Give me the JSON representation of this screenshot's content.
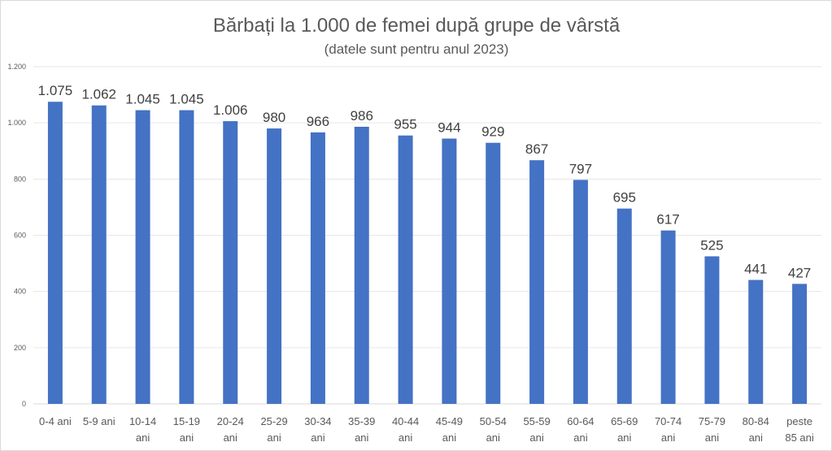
{
  "chart_data": {
    "type": "bar",
    "title": "Bărbați la 1.000 de femei după grupe de vârstă",
    "subtitle": "(datele sunt pentru anul 2023)",
    "xlabel": "",
    "ylabel": "",
    "ylim": [
      0,
      1200
    ],
    "yticks": [
      0,
      200,
      400,
      600,
      800,
      1000,
      1200
    ],
    "ytick_labels": [
      "0",
      "200",
      "400",
      "600",
      "800",
      "1.000",
      "1.200"
    ],
    "grid": true,
    "bar_color": "#4472C4",
    "categories": [
      [
        "0-4 ani"
      ],
      [
        "5-9 ani"
      ],
      [
        "10-14",
        "ani"
      ],
      [
        "15-19",
        "ani"
      ],
      [
        "20-24",
        "ani"
      ],
      [
        "25-29",
        "ani"
      ],
      [
        "30-34",
        "ani"
      ],
      [
        "35-39",
        "ani"
      ],
      [
        "40-44",
        "ani"
      ],
      [
        "45-49",
        "ani"
      ],
      [
        "50-54",
        "ani"
      ],
      [
        "55-59",
        "ani"
      ],
      [
        "60-64",
        "ani"
      ],
      [
        "65-69",
        "ani"
      ],
      [
        "70-74",
        "ani"
      ],
      [
        "75-79",
        "ani"
      ],
      [
        "80-84",
        "ani"
      ],
      [
        "peste",
        "85 ani"
      ]
    ],
    "values": [
      1075,
      1062,
      1045,
      1045,
      1006,
      980,
      966,
      986,
      955,
      944,
      929,
      867,
      797,
      695,
      617,
      525,
      441,
      427
    ],
    "data_labels": [
      "1.075",
      "1.062",
      "1.045",
      "1.045",
      "1.006",
      "980",
      "966",
      "986",
      "955",
      "944",
      "929",
      "867",
      "797",
      "695",
      "617",
      "525",
      "441",
      "427"
    ]
  }
}
